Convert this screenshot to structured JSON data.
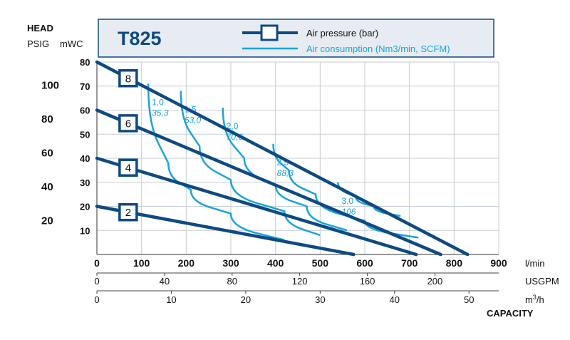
{
  "header": {
    "head_label": "HEAD",
    "psig_label": "PSIG",
    "mwc_label": "mWC"
  },
  "legend": {
    "model": "T825",
    "pressure_label": "Air pressure (bar)",
    "consumption_label": "Air consumption (Nm3/min, SCFM)"
  },
  "colors": {
    "pressure_line": "#0e4a82",
    "consumption_line": "#1aa3dc",
    "legend_bg": "#e6ecf1",
    "grid": "#c8ced6"
  },
  "chart_data": {
    "type": "line",
    "title": "T825",
    "xlabel": "CAPACITY",
    "ylabel": "HEAD",
    "x_unit": "l/min",
    "y_unit": "mWC",
    "xlim": [
      0,
      900
    ],
    "ylim": [
      0,
      80
    ],
    "grid": true,
    "y_ticks_mwc": [
      10,
      20,
      30,
      40,
      50,
      60,
      70,
      80
    ],
    "y_ticks_psig": [
      20,
      40,
      60,
      80,
      100
    ],
    "x_axes": [
      {
        "unit": "l/min",
        "ticks": [
          "0",
          "100",
          "200",
          "300",
          "400",
          "500",
          "600",
          "700",
          "800",
          "900"
        ],
        "values": [
          0,
          100,
          200,
          300,
          400,
          500,
          600,
          700,
          800,
          900
        ]
      },
      {
        "unit": "USGPM",
        "ticks": [
          "0",
          "40",
          "80",
          "120",
          "160",
          "200"
        ],
        "values": [
          0,
          40,
          80,
          120,
          160,
          200
        ]
      },
      {
        "unit": "m³/h",
        "ticks": [
          "0",
          "10",
          "20",
          "30",
          "40",
          "50"
        ],
        "values": [
          0,
          10,
          20,
          30,
          40,
          50
        ]
      }
    ],
    "pressure_series": [
      {
        "label": "8",
        "points": [
          [
            0,
            80
          ],
          [
            830,
            0
          ]
        ]
      },
      {
        "label": "6",
        "points": [
          [
            0,
            60
          ],
          [
            770,
            0
          ]
        ]
      },
      {
        "label": "4",
        "points": [
          [
            0,
            40
          ],
          [
            715,
            0
          ]
        ]
      },
      {
        "label": "2",
        "points": [
          [
            0,
            20
          ],
          [
            575,
            0
          ]
        ]
      }
    ],
    "consumption_series": [
      {
        "label": "1,0",
        "sublabel": "35,3",
        "points": [
          [
            115,
            71
          ],
          [
            160,
            38
          ],
          [
            210,
            27
          ],
          [
            300,
            17
          ],
          [
            420,
            6
          ]
        ]
      },
      {
        "label": "1,5",
        "sublabel": "53,0",
        "points": [
          [
            188,
            68
          ],
          [
            230,
            45
          ],
          [
            300,
            31
          ],
          [
            420,
            18
          ],
          [
            500,
            8
          ]
        ]
      },
      {
        "label": "2,0",
        "sublabel": "70,6",
        "points": [
          [
            282,
            61
          ],
          [
            330,
            40
          ],
          [
            400,
            29
          ],
          [
            470,
            20
          ],
          [
            560,
            10
          ]
        ]
      },
      {
        "label": "2,5",
        "sublabel": "88,3",
        "points": [
          [
            395,
            46
          ],
          [
            430,
            35
          ],
          [
            490,
            25
          ],
          [
            600,
            14
          ],
          [
            720,
            7
          ]
        ]
      },
      {
        "label": "3,0",
        "sublabel": "106",
        "points": [
          [
            540,
            30
          ],
          [
            580,
            24
          ],
          [
            620,
            20
          ],
          [
            680,
            16
          ]
        ]
      }
    ]
  }
}
